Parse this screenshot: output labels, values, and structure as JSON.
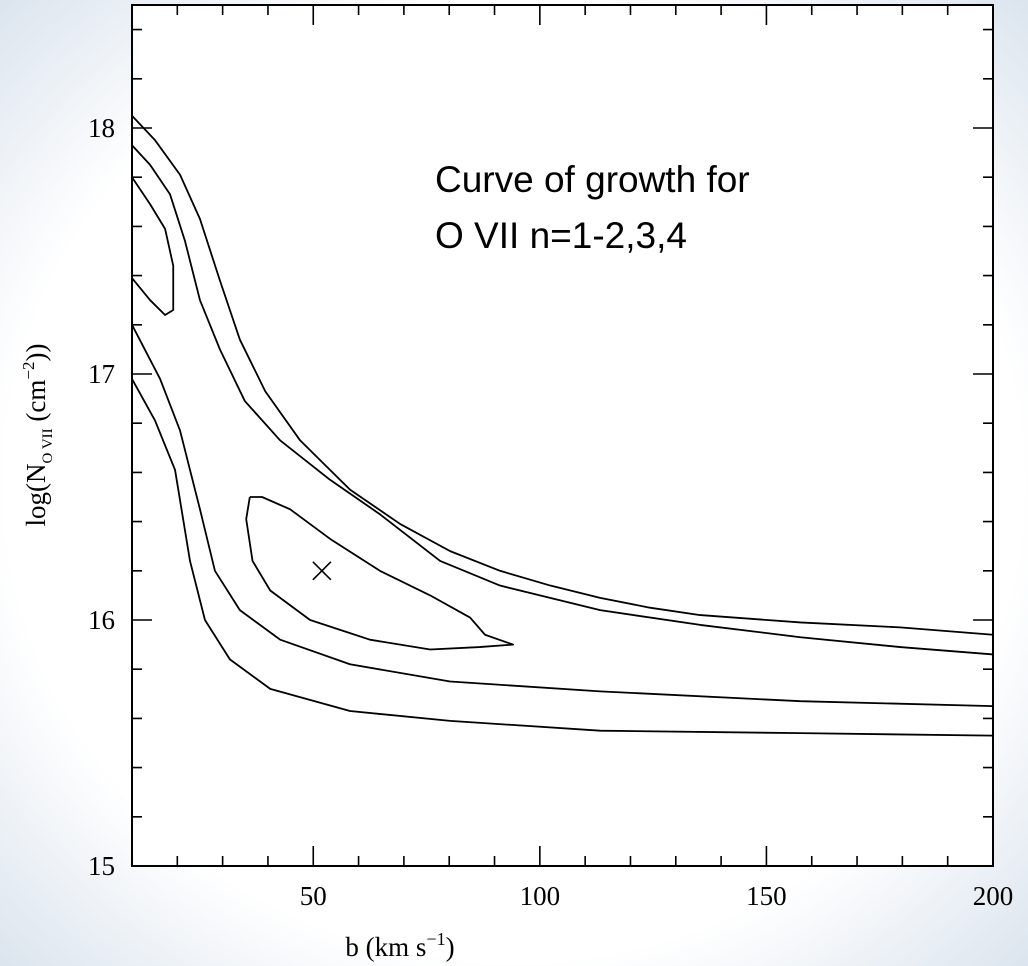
{
  "chart_data": {
    "type": "contour",
    "annotation": [
      "Curve of growth for",
      "O VII n=1-2,3,4"
    ],
    "xlabel": [
      "b (km s",
      "−1",
      ")"
    ],
    "ylabel": [
      "log(N",
      "O VII",
      " (cm",
      "−2",
      "))"
    ],
    "xlim": [
      10,
      200
    ],
    "ylim": [
      15,
      18.5
    ],
    "xticks": [
      50,
      100,
      150,
      200
    ],
    "yticks": [
      15,
      16,
      17,
      18
    ],
    "xminorticks": [
      20,
      30,
      40,
      60,
      70,
      80,
      90,
      110,
      120,
      130,
      140,
      160,
      170,
      180,
      190
    ],
    "yminorticks": [
      15.2,
      15.4,
      15.6,
      15.8,
      16.2,
      16.4,
      16.6,
      16.8,
      17.2,
      17.4,
      17.6,
      17.8,
      18.2,
      18.4
    ],
    "color": "#000000",
    "series": [
      {
        "x": [
          10,
          15.1,
          20.6,
          25.0,
          29.4,
          33.8,
          39.4,
          47.1,
          58.1,
          69.2,
          80.2,
          91.2,
          102.3,
          113.3,
          124.3,
          135.4,
          157.5,
          179.5,
          200
        ],
        "y": [
          18.05,
          17.95,
          17.81,
          17.63,
          17.38,
          17.14,
          16.93,
          16.73,
          16.53,
          16.39,
          16.28,
          16.2,
          16.14,
          16.09,
          16.05,
          16.02,
          15.99,
          15.97,
          15.94
        ]
      },
      {
        "x": [
          10,
          14.0,
          18.4,
          21.7,
          25.0,
          29.4,
          34.9,
          42.7,
          53.7,
          64.7,
          78.0,
          91.2,
          113.3,
          135.4,
          157.5,
          179.5,
          200
        ],
        "y": [
          17.93,
          17.85,
          17.73,
          17.54,
          17.3,
          17.1,
          16.89,
          16.73,
          16.57,
          16.43,
          16.24,
          16.14,
          16.04,
          15.98,
          15.93,
          15.89,
          15.86
        ]
      },
      {
        "x": [
          10,
          14.0,
          17.3,
          19.1,
          19.1,
          17.3,
          14.0,
          10
        ],
        "y": [
          17.8,
          17.69,
          17.59,
          17.44,
          17.26,
          17.24,
          17.3,
          17.39
        ]
      },
      {
        "x": [
          10,
          16.2,
          20.6,
          25.0,
          28.3,
          33.8,
          42.7,
          58.1,
          80.2,
          113.3,
          157.5,
          200
        ],
        "y": [
          17.2,
          16.98,
          16.77,
          16.45,
          16.2,
          16.04,
          15.92,
          15.82,
          15.75,
          15.71,
          15.67,
          15.65
        ]
      },
      {
        "x": [
          10,
          15.1,
          19.5,
          22.8,
          26.1,
          31.6,
          40.5,
          58.1,
          80.2,
          113.3,
          157.5,
          200
        ],
        "y": [
          16.98,
          16.81,
          16.61,
          16.24,
          16.0,
          15.84,
          15.72,
          15.63,
          15.59,
          15.55,
          15.54,
          15.53
        ]
      },
      {
        "x": [
          36.0,
          38.7,
          44.9,
          53.7,
          64.7,
          75.8,
          84.6,
          87.9,
          94.1,
          86.7,
          75.8,
          62.5,
          49.3,
          40.5,
          36.6,
          35.2,
          36.0
        ],
        "y": [
          16.5,
          16.5,
          16.45,
          16.33,
          16.2,
          16.1,
          16.01,
          15.94,
          15.9,
          15.89,
          15.88,
          15.92,
          16.0,
          16.12,
          16.24,
          16.41,
          16.5
        ]
      }
    ],
    "marker": {
      "x": 51.9,
      "y": 16.2
    }
  }
}
